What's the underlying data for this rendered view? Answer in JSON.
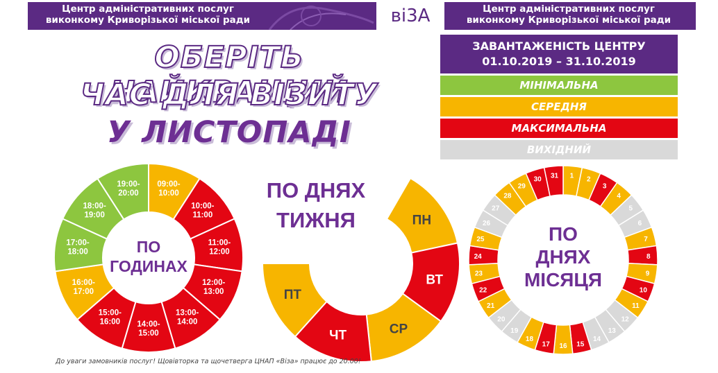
{
  "banner": {
    "org_left_line1": "Центр адміністративних послуг",
    "org_left_line2": "виконкому Криворізької міської ради",
    "logo": "ві3А",
    "org_right_line1": "Центр адміністративних послуг",
    "org_right_line2": "виконкому Криворізької міської ради"
  },
  "headline": {
    "line1": "ОБЕРІТЬ НАЙКРАЩИЙ",
    "line2": "ЧАС ДЛЯ ВІЗИТУ",
    "line3": "У ЛИСТОПАДІ"
  },
  "legend": {
    "title_line1": "ЗАВАНТАЖЕНІСТЬ ЦЕНТРУ",
    "title_line2": "01.10.2019 – 31.10.2019",
    "levels": [
      {
        "label": "МІНІМАЛЬНА",
        "color": "#8dc63f",
        "text_color": "#ffffff"
      },
      {
        "label": "СЕРЕДНЯ",
        "color": "#f7b500",
        "text_color": "#ffffff"
      },
      {
        "label": "МАКСИМАЛЬНА",
        "color": "#e30613",
        "text_color": "#ffffff"
      },
      {
        "label": "ВИХІДНИЙ",
        "color": "#d9d9d9",
        "text_color": "#ffffff"
      }
    ]
  },
  "chart_data": [
    {
      "type": "pie",
      "title": "ПО ГОДИНАХ",
      "title_line1": "ПО",
      "title_line2": "ГОДИНАХ",
      "slices": [
        {
          "label": "09:00-10:00",
          "level": "СЕРЕДНЯ"
        },
        {
          "label": "10:00-11:00",
          "level": "МАКСИМАЛЬНА"
        },
        {
          "label": "11:00-12:00",
          "level": "МАКСИМАЛЬНА"
        },
        {
          "label": "12:00-13:00",
          "level": "МАКСИМАЛЬНА"
        },
        {
          "label": "13:00-14:00",
          "level": "МАКСИМАЛЬНА"
        },
        {
          "label": "14:00-15:00",
          "level": "МАКСИМАЛЬНА"
        },
        {
          "label": "15:00-16:00",
          "level": "МАКСИМАЛЬНА"
        },
        {
          "label": "16:00-17:00",
          "level": "СЕРЕДНЯ"
        },
        {
          "label": "17:00-18:00",
          "level": "МІНІМАЛЬНА"
        },
        {
          "label": "18:00-19:00",
          "level": "МІНІМАЛЬНА"
        },
        {
          "label": "19:00-20:00",
          "level": "МІНІМАЛЬНА"
        }
      ]
    },
    {
      "type": "pie",
      "title": "ПО ДНЯХ ТИЖНЯ",
      "title_line1": "ПО ДНЯХ",
      "title_line2": "ТИЖНЯ",
      "slices": [
        {
          "label": "ПН",
          "level": "СЕРЕДНЯ"
        },
        {
          "label": "ВТ",
          "level": "МАКСИМАЛЬНА"
        },
        {
          "label": "СР",
          "level": "СЕРЕДНЯ"
        },
        {
          "label": "ЧТ",
          "level": "МАКСИМАЛЬНА"
        },
        {
          "label": "ПТ",
          "level": "СЕРЕДНЯ"
        }
      ]
    },
    {
      "type": "pie",
      "title": "ПО ДНЯХ МІСЯЦЯ",
      "title_line1": "ПО",
      "title_line2": "ДНЯХ",
      "title_line3": "МІСЯЦЯ",
      "slices": [
        {
          "label": "1",
          "level": "СЕРЕДНЯ"
        },
        {
          "label": "2",
          "level": "СЕРЕДНЯ"
        },
        {
          "label": "3",
          "level": "МАКСИМАЛЬНА"
        },
        {
          "label": "4",
          "level": "СЕРЕДНЯ"
        },
        {
          "label": "5",
          "level": "ВИХІДНИЙ"
        },
        {
          "label": "6",
          "level": "ВИХІДНИЙ"
        },
        {
          "label": "7",
          "level": "СЕРЕДНЯ"
        },
        {
          "label": "8",
          "level": "МАКСИМАЛЬНА"
        },
        {
          "label": "9",
          "level": "СЕРЕДНЯ"
        },
        {
          "label": "10",
          "level": "МАКСИМАЛЬНА"
        },
        {
          "label": "11",
          "level": "СЕРЕДНЯ"
        },
        {
          "label": "12",
          "level": "ВИХІДНИЙ"
        },
        {
          "label": "13",
          "level": "ВИХІДНИЙ"
        },
        {
          "label": "14",
          "level": "ВИХІДНИЙ"
        },
        {
          "label": "15",
          "level": "МАКСИМАЛЬНА"
        },
        {
          "label": "16",
          "level": "СЕРЕДНЯ"
        },
        {
          "label": "17",
          "level": "МАКСИМАЛЬНА"
        },
        {
          "label": "18",
          "level": "СЕРЕДНЯ"
        },
        {
          "label": "19",
          "level": "ВИХІДНИЙ"
        },
        {
          "label": "20",
          "level": "ВИХІДНИЙ"
        },
        {
          "label": "21",
          "level": "СЕРЕДНЯ"
        },
        {
          "label": "22",
          "level": "МАКСИМАЛЬНА"
        },
        {
          "label": "23",
          "level": "СЕРЕДНЯ"
        },
        {
          "label": "24",
          "level": "МАКСИМАЛЬНА"
        },
        {
          "label": "25",
          "level": "СЕРЕДНЯ"
        },
        {
          "label": "26",
          "level": "ВИХІДНИЙ"
        },
        {
          "label": "27",
          "level": "ВИХІДНИЙ"
        },
        {
          "label": "28",
          "level": "СЕРЕДНЯ"
        },
        {
          "label": "29",
          "level": "СЕРЕДНЯ"
        },
        {
          "label": "30",
          "level": "МАКСИМАЛЬНА"
        },
        {
          "label": "31",
          "level": "МАКСИМАЛЬНА"
        }
      ]
    }
  ],
  "footnote": "До уваги замовників послуг!  Щовівторка та щочетверга ЦНАП «Віза» працює до 20.00!"
}
